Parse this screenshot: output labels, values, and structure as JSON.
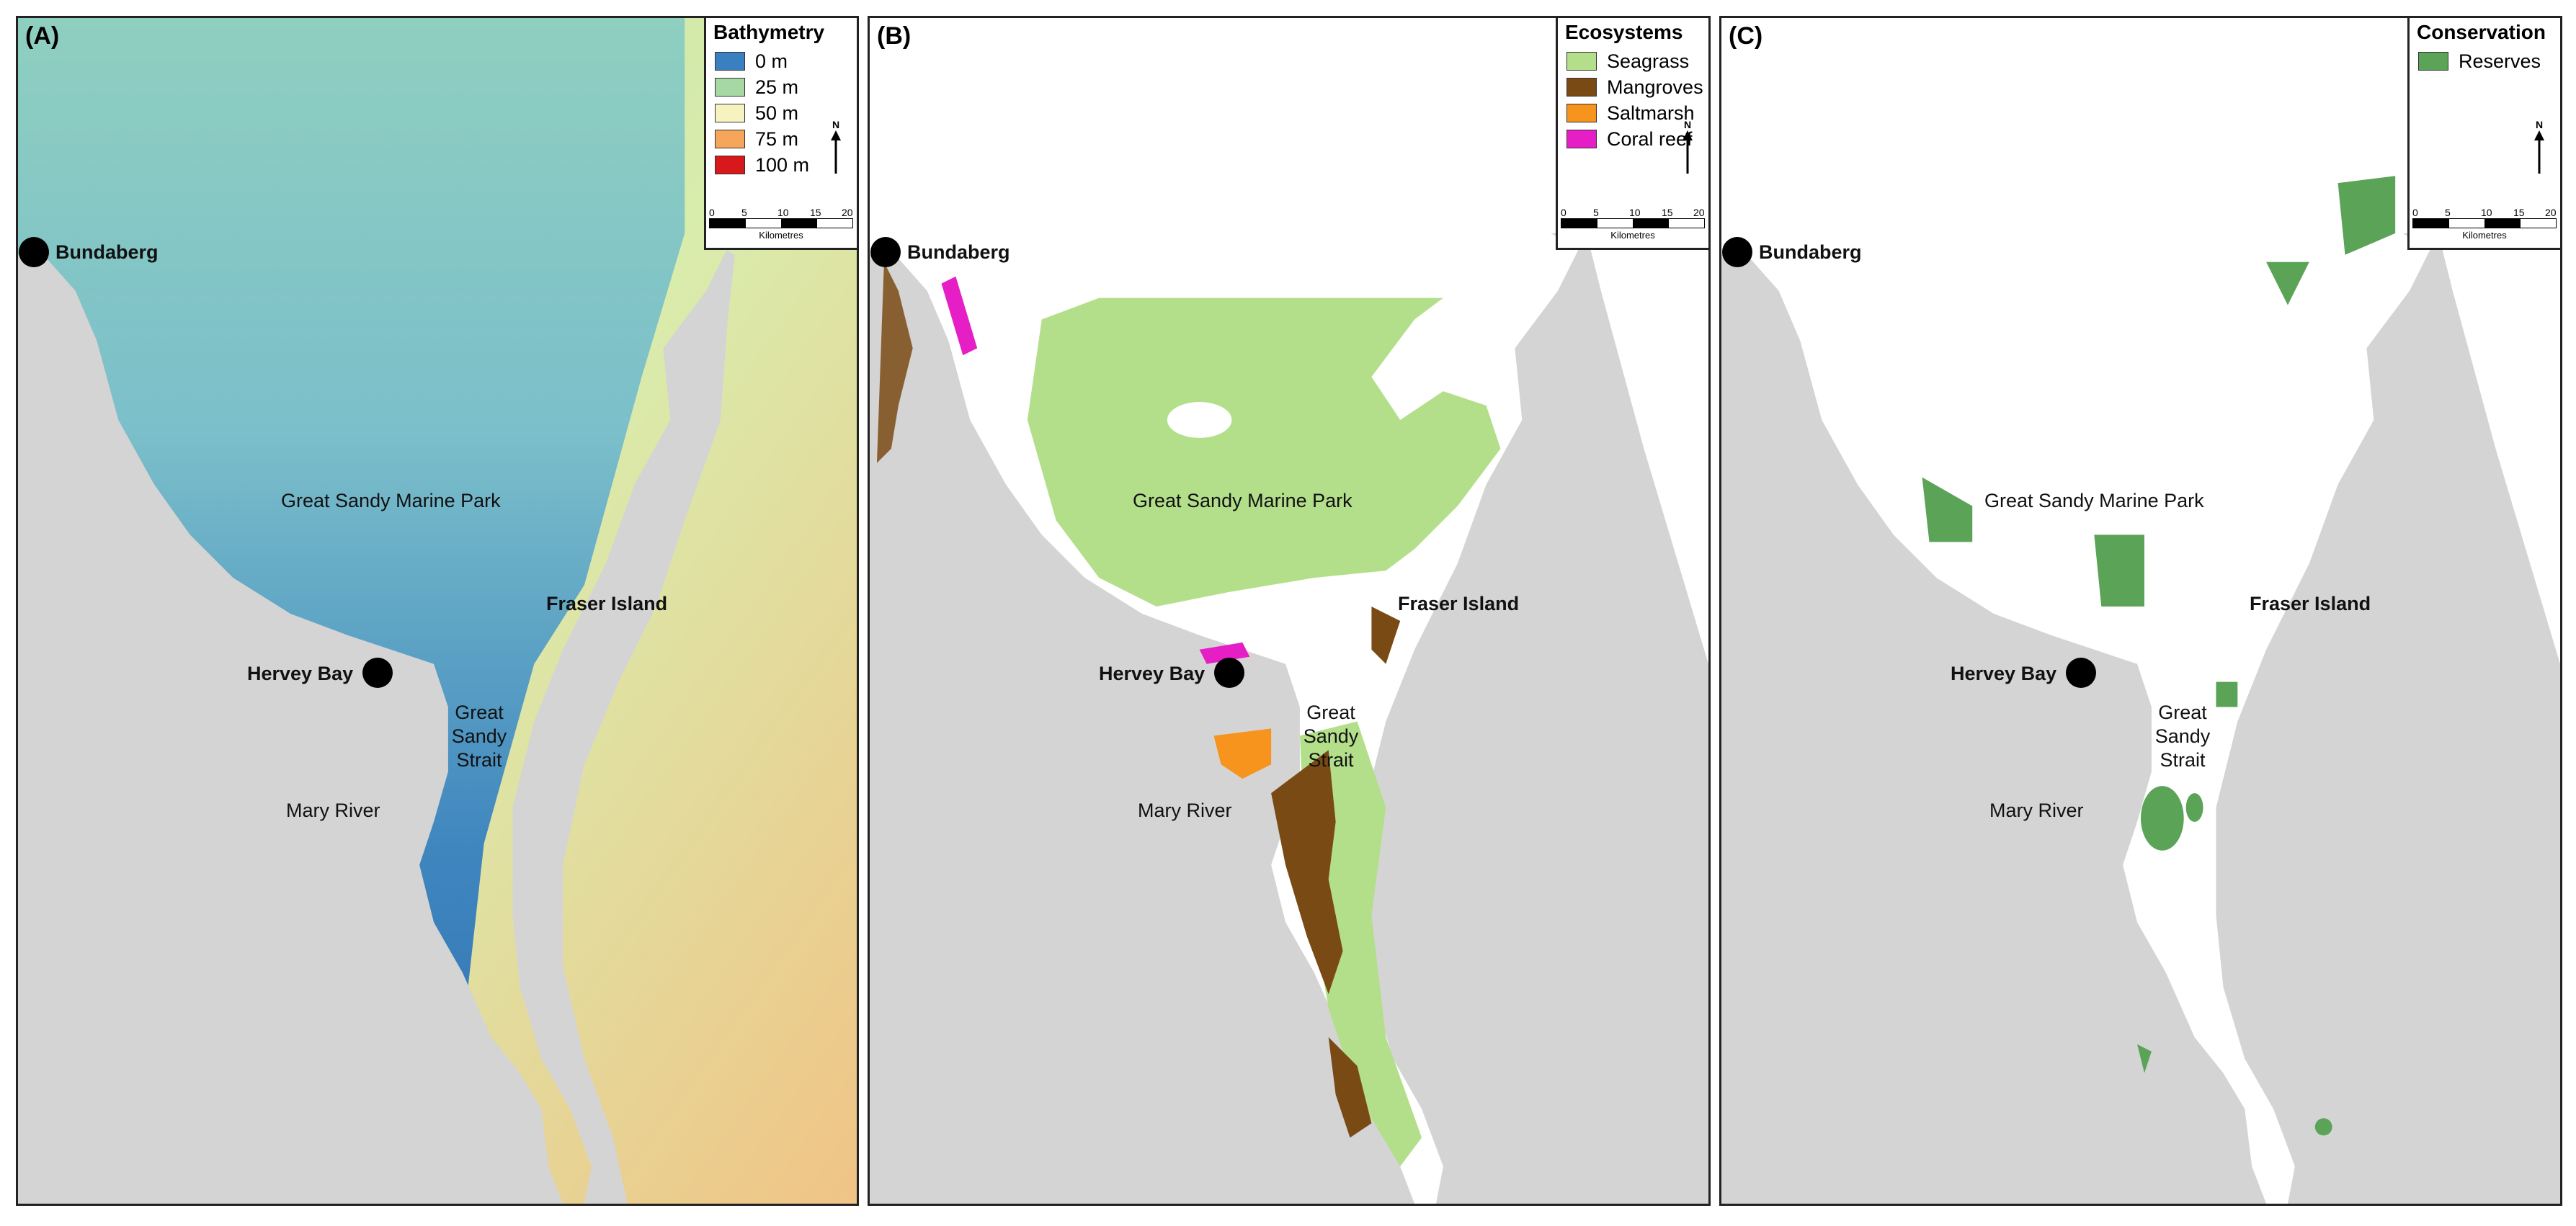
{
  "panels": {
    "a": {
      "label": "(A)",
      "legend_title": "Bathymetry",
      "legend": [
        {
          "label": "0 m",
          "color": "#3a7fbf"
        },
        {
          "label": "25 m",
          "color": "#a6d8a4"
        },
        {
          "label": "50 m",
          "color": "#f7f3c0"
        },
        {
          "label": "75 m",
          "color": "#f5a65b"
        },
        {
          "label": "100 m",
          "color": "#d7191c"
        }
      ]
    },
    "b": {
      "label": "(B)",
      "legend_title": "Ecosystems",
      "legend": [
        {
          "label": "Seagrass",
          "color": "#b3df8a"
        },
        {
          "label": "Mangroves",
          "color": "#7a4a14"
        },
        {
          "label": "Saltmarsh",
          "color": "#f7941d"
        },
        {
          "label": "Coral reef",
          "color": "#e61ec6"
        }
      ]
    },
    "c": {
      "label": "(C)",
      "legend_title": "Conservation",
      "legend": [
        {
          "label": "Reserves",
          "color": "#5aa357"
        }
      ]
    }
  },
  "place_labels": {
    "bundaberg": "Bundaberg",
    "hervey_bay": "Hervey Bay",
    "fraser_island": "Fraser Island",
    "marine_park": "Great Sandy Marine Park",
    "strait": "Great Sandy Strait",
    "mary_river": "Mary River"
  },
  "north_arrow": "N",
  "scale": {
    "ticks": [
      "0",
      "5",
      "10",
      "15",
      "20"
    ],
    "unit": "Kilometres"
  },
  "colors": {
    "land": "#d4d4d4",
    "sea_white": "#ffffff",
    "frame": "#222222"
  }
}
